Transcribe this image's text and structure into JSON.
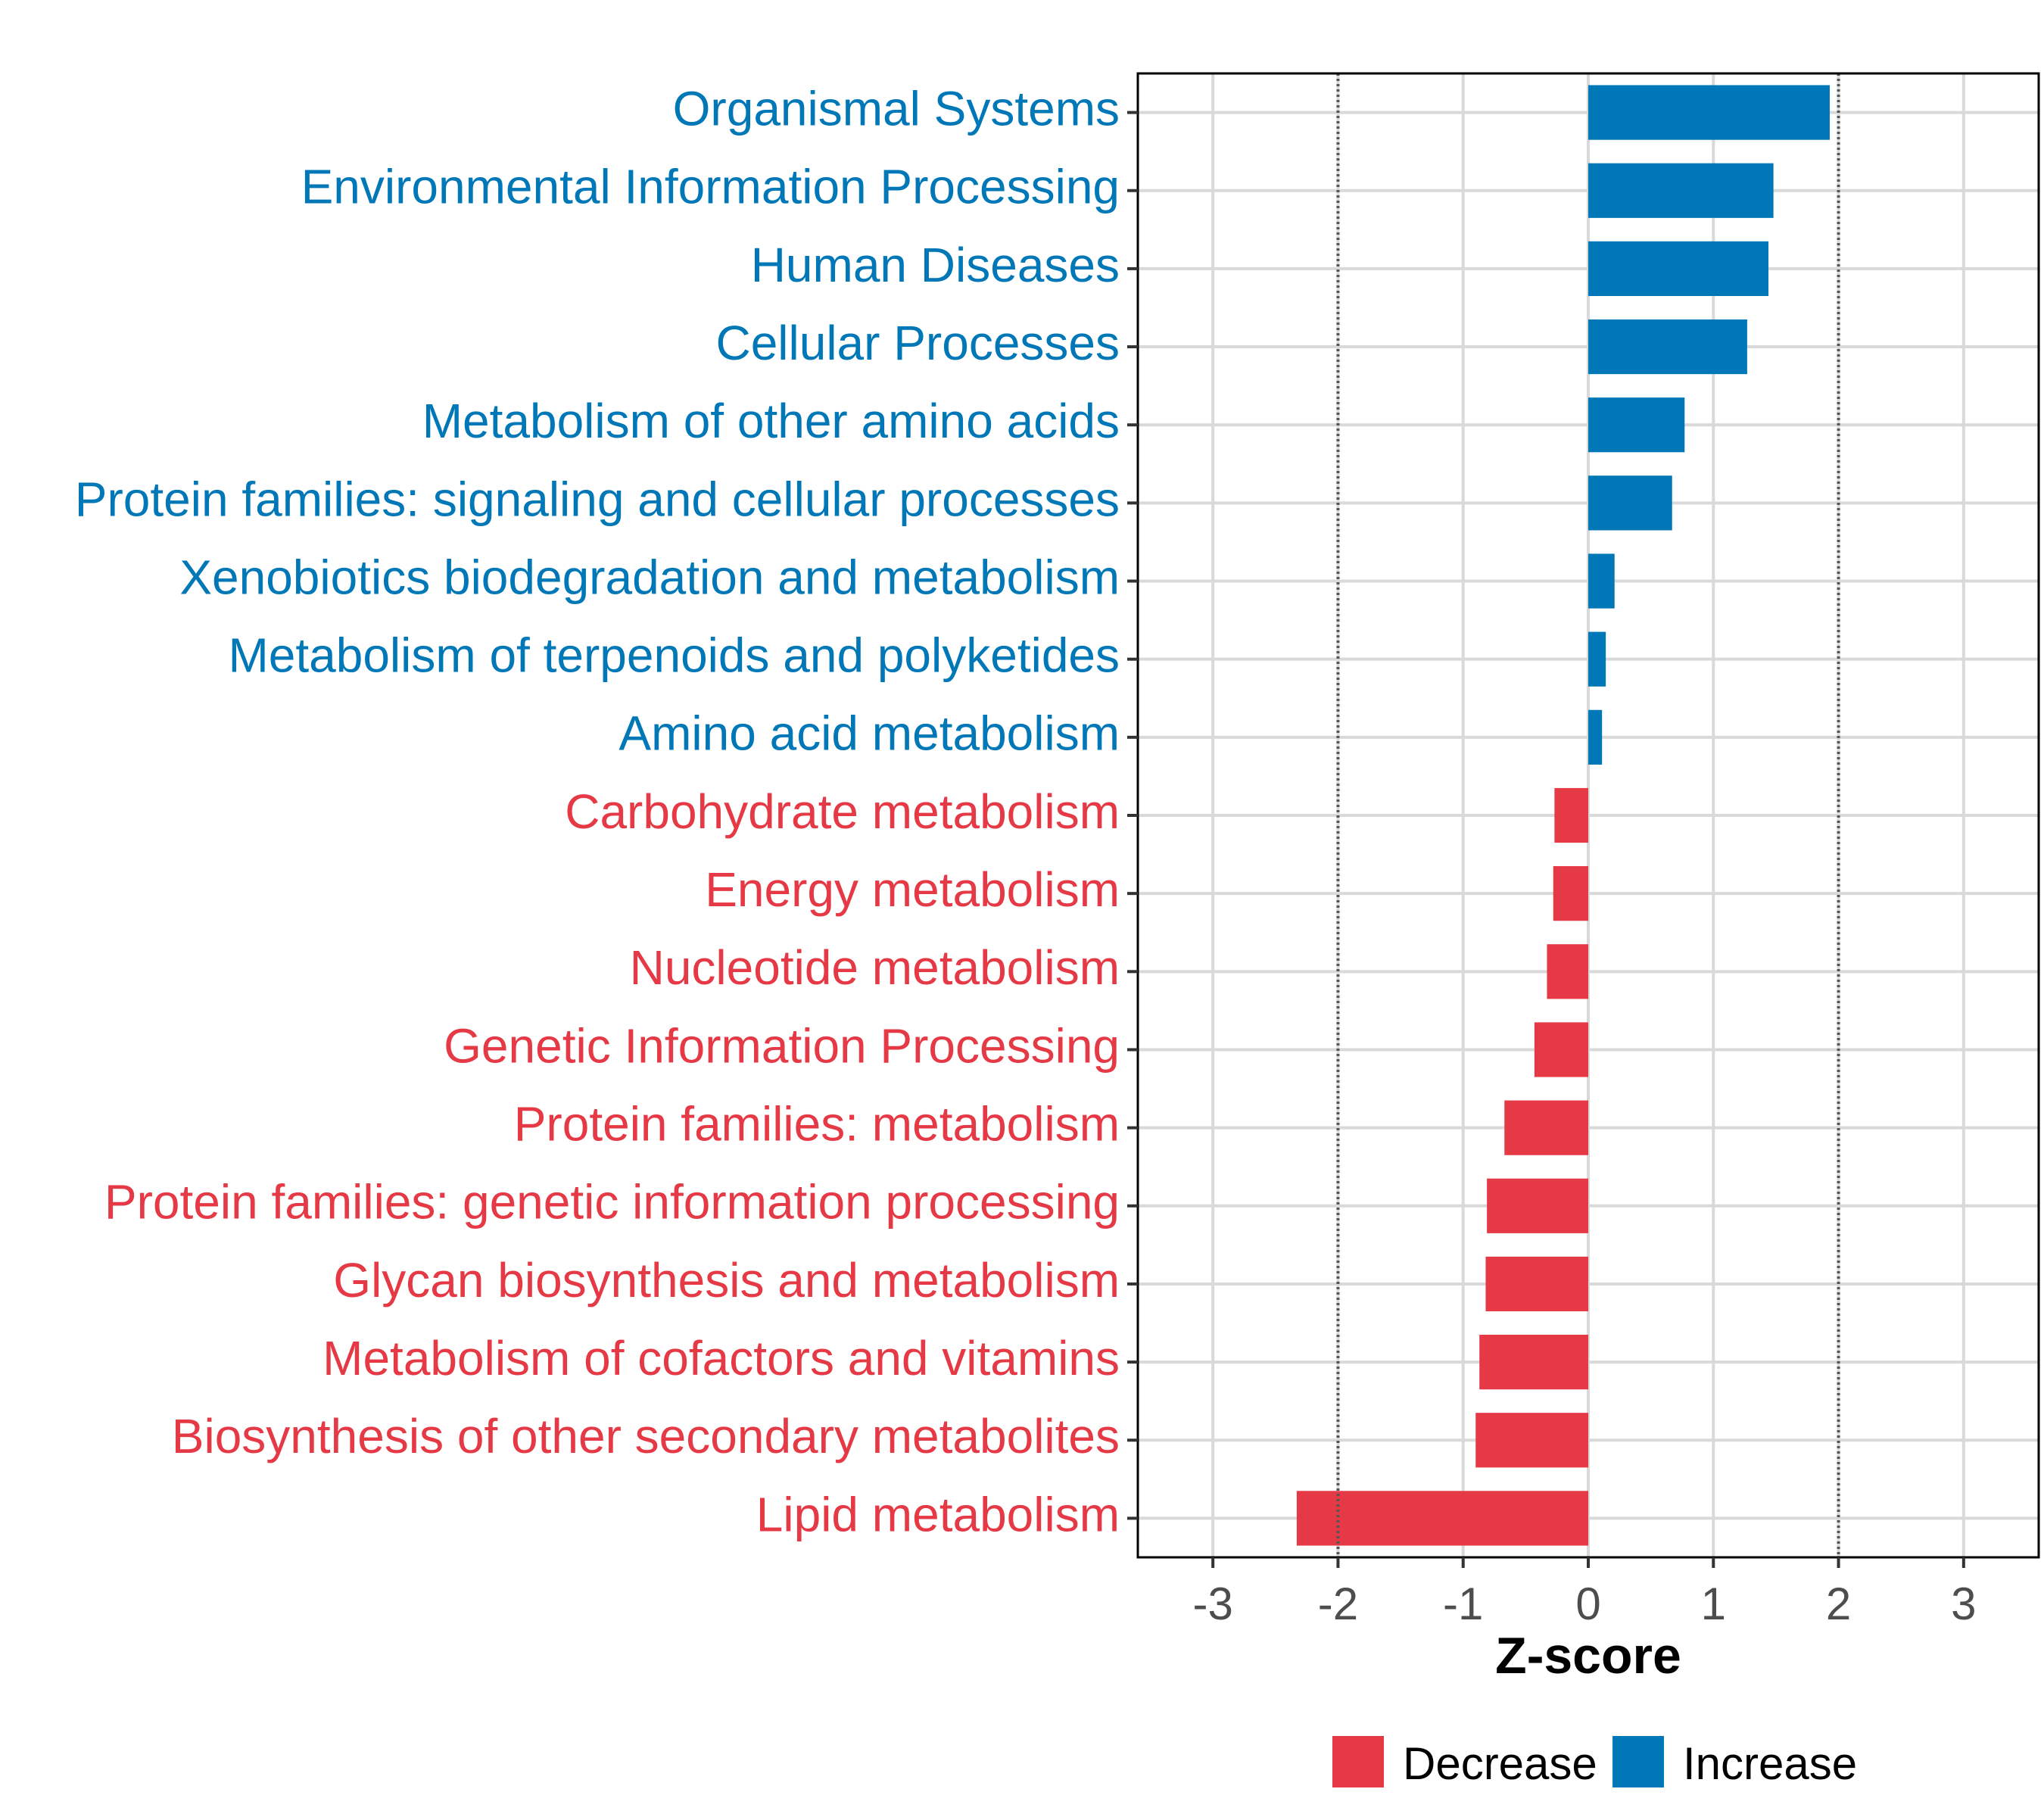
{
  "chart_data": {
    "type": "bar",
    "orientation": "horizontal",
    "title": "",
    "xlabel": "Z-score",
    "ylabel": "",
    "xlim": [
      -3.6,
      3.6
    ],
    "x_ticks": [
      -3,
      -2,
      -1,
      0,
      1,
      2,
      3
    ],
    "x_tick_labels": [
      "-3",
      "-2",
      "-1",
      "0",
      "1",
      "2",
      "3"
    ],
    "reference_lines": [
      -2,
      2
    ],
    "grid": true,
    "categories": [
      "Organismal Systems",
      "Environmental Information Processing",
      "Human Diseases",
      "Cellular Processes",
      "Metabolism of other amino acids",
      "Protein families: signaling and cellular processes",
      "Xenobiotics biodegradation and metabolism",
      "Metabolism of terpenoids and polyketides",
      "Amino acid metabolism",
      "Carbohydrate metabolism",
      "Energy metabolism",
      "Nucleotide metabolism",
      "Genetic Information Processing",
      "Protein families: metabolism",
      "Protein families: genetic information processing",
      "Glycan biosynthesis and metabolism",
      "Metabolism of cofactors and vitamins",
      "Biosynthesis of other secondary metabolites",
      "Lipid metabolism"
    ],
    "values": [
      1.93,
      1.48,
      1.44,
      1.27,
      0.77,
      0.67,
      0.21,
      0.14,
      0.11,
      -0.27,
      -0.28,
      -0.33,
      -0.43,
      -0.67,
      -0.81,
      -0.82,
      -0.87,
      -0.9,
      -2.33
    ],
    "groups": [
      "Increase",
      "Increase",
      "Increase",
      "Increase",
      "Increase",
      "Increase",
      "Increase",
      "Increase",
      "Increase",
      "Decrease",
      "Decrease",
      "Decrease",
      "Decrease",
      "Decrease",
      "Decrease",
      "Decrease",
      "Decrease",
      "Decrease",
      "Decrease"
    ],
    "legend": {
      "position": "bottom",
      "items": [
        {
          "label": "Decrease",
          "color": "#E63946"
        },
        {
          "label": "Increase",
          "color": "#0077B6"
        }
      ]
    },
    "colors": {
      "Decrease": "#E63946",
      "Increase": "#0077B6",
      "grid": "#D9D9D9",
      "reference_line": "#555555"
    }
  }
}
